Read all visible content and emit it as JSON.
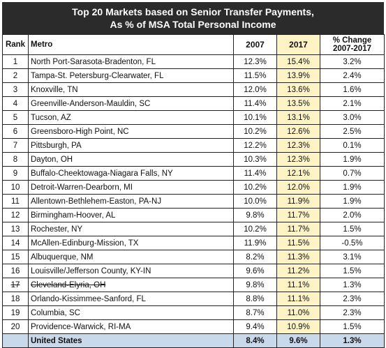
{
  "title_line1": "Top 20 Markets based on Senior Transfer Payments,",
  "title_line2": "As % of MSA Total Personal Income",
  "headers": {
    "rank": "Rank",
    "metro": "Metro",
    "y2007": "2007",
    "y2017": "2017",
    "change_line1": "% Change",
    "change_line2": "2007-2017"
  },
  "rows": [
    {
      "rank": "1",
      "metro": "North Port-Sarasota-Bradenton, FL",
      "v2007": "12.3%",
      "v2017": "15.4%",
      "change": "3.2%"
    },
    {
      "rank": "2",
      "metro": "Tampa-St. Petersburg-Clearwater, FL",
      "v2007": "11.5%",
      "v2017": "13.9%",
      "change": "2.4%"
    },
    {
      "rank": "3",
      "metro": "Knoxville, TN",
      "v2007": "12.0%",
      "v2017": "13.6%",
      "change": "1.6%"
    },
    {
      "rank": "4",
      "metro": "Greenville-Anderson-Mauldin, SC",
      "v2007": "11.4%",
      "v2017": "13.5%",
      "change": "2.1%"
    },
    {
      "rank": "5",
      "metro": "Tucson, AZ",
      "v2007": "10.1%",
      "v2017": "13.1%",
      "change": "3.0%"
    },
    {
      "rank": "6",
      "metro": "Greensboro-High Point, NC",
      "v2007": "10.2%",
      "v2017": "12.6%",
      "change": "2.5%"
    },
    {
      "rank": "7",
      "metro": "Pittsburgh, PA",
      "v2007": "12.2%",
      "v2017": "12.3%",
      "change": "0.1%"
    },
    {
      "rank": "8",
      "metro": "Dayton, OH",
      "v2007": "10.3%",
      "v2017": "12.3%",
      "change": "1.9%"
    },
    {
      "rank": "9",
      "metro": "Buffalo-Cheektowaga-Niagara Falls, NY",
      "v2007": "11.4%",
      "v2017": "12.1%",
      "change": "0.7%"
    },
    {
      "rank": "10",
      "metro": "Detroit-Warren-Dearborn, MI",
      "v2007": "10.2%",
      "v2017": "12.0%",
      "change": "1.9%"
    },
    {
      "rank": "11",
      "metro": "Allentown-Bethlehem-Easton, PA-NJ",
      "v2007": "10.0%",
      "v2017": "11.9%",
      "change": "1.9%"
    },
    {
      "rank": "12",
      "metro": "Birmingham-Hoover, AL",
      "v2007": "9.8%",
      "v2017": "11.7%",
      "change": "2.0%"
    },
    {
      "rank": "13",
      "metro": "Rochester, NY",
      "v2007": "10.2%",
      "v2017": "11.7%",
      "change": "1.5%"
    },
    {
      "rank": "14",
      "metro": "McAllen-Edinburg-Mission, TX",
      "v2007": "11.9%",
      "v2017": "11.5%",
      "change": "-0.5%"
    },
    {
      "rank": "15",
      "metro": "Albuquerque, NM",
      "v2007": "8.2%",
      "v2017": "11.3%",
      "change": "3.1%"
    },
    {
      "rank": "16",
      "metro": "Louisville/Jefferson County, KY-IN",
      "v2007": "9.6%",
      "v2017": "11.2%",
      "change": "1.5%"
    },
    {
      "rank": "17",
      "metro": "Cleveland-Elyria, OH",
      "v2007": "9.8%",
      "v2017": "11.1%",
      "change": "1.3%",
      "strike": true
    },
    {
      "rank": "18",
      "metro": "Orlando-Kissimmee-Sanford, FL",
      "v2007": "8.8%",
      "v2017": "11.1%",
      "change": "2.3%"
    },
    {
      "rank": "19",
      "metro": "Columbia, SC",
      "v2007": "8.7%",
      "v2017": "11.0%",
      "change": "2.3%"
    },
    {
      "rank": "20",
      "metro": "Providence-Warwick, RI-MA",
      "v2007": "9.4%",
      "v2017": "10.9%",
      "change": "1.5%"
    }
  ],
  "total": {
    "rank": "",
    "metro": "United States",
    "v2007": "8.4%",
    "v2017": "9.6%",
    "change": "1.3%"
  },
  "colors": {
    "title_bg": "#2b2b2b",
    "highlight_2017": "#fdf3c4",
    "total_row_bg": "#c9d9ec"
  }
}
